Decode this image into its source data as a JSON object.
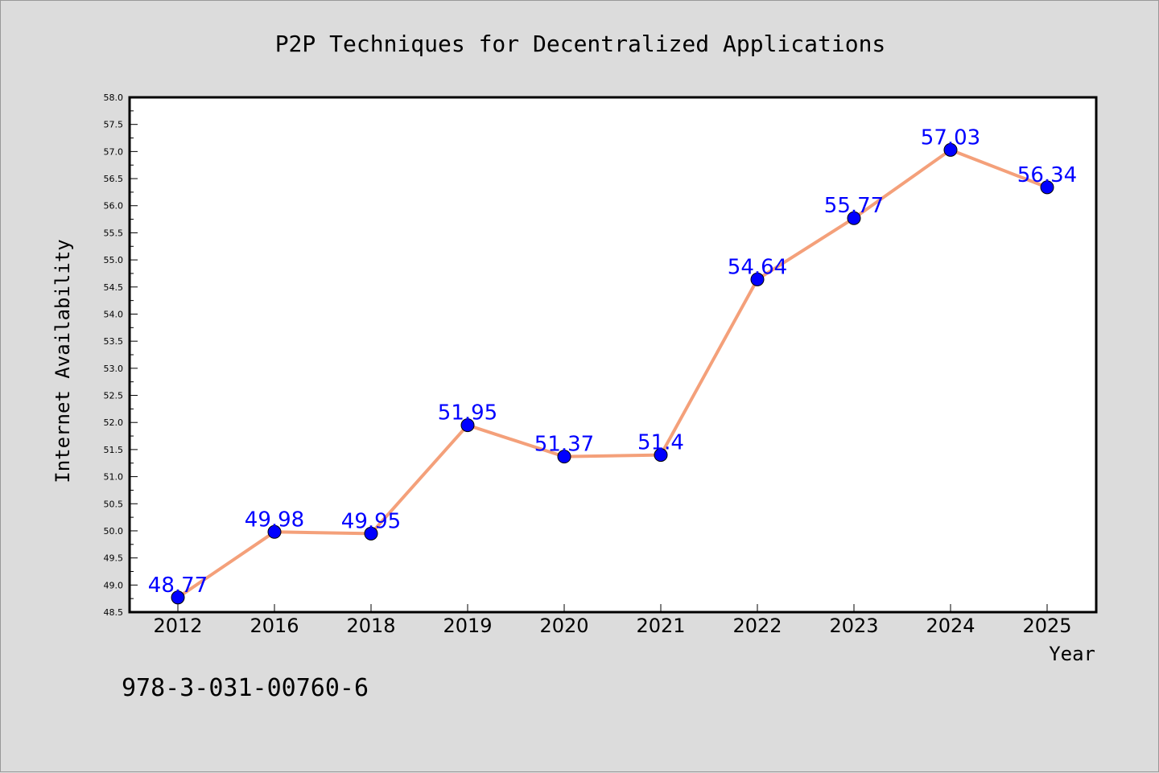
{
  "chart_data": {
    "type": "line",
    "title": "P2P Techniques for Decentralized Applications",
    "xlabel": "Year",
    "ylabel": "Internet Availability",
    "categories": [
      "2012",
      "2016",
      "2018",
      "2019",
      "2020",
      "2021",
      "2022",
      "2023",
      "2024",
      "2025"
    ],
    "values": [
      48.77,
      49.98,
      49.95,
      51.95,
      51.37,
      51.4,
      54.64,
      55.77,
      57.03,
      56.34
    ],
    "data_labels": [
      "48.77",
      "49.98",
      "49.95",
      "51.95",
      "51.37",
      "51.4",
      "54.64",
      "55.77",
      "57.03",
      "56.34"
    ],
    "ylim": [
      48.5,
      58.0
    ],
    "yticks": [
      "48.5",
      "49.0",
      "49.5",
      "50.0",
      "50.5",
      "51.0",
      "51.5",
      "52.0",
      "52.5",
      "53.0",
      "53.5",
      "54.0",
      "54.5",
      "55.0",
      "55.5",
      "56.0",
      "56.5",
      "57.0",
      "57.5",
      "58.0"
    ],
    "grid": false,
    "line_color": "#f4a07a",
    "marker_color": "#0000ff",
    "label_color": "#0000ff",
    "background": "#dcdcdc",
    "plot_background": "#ffffff"
  },
  "footer_text": "978-3-031-00760-6"
}
